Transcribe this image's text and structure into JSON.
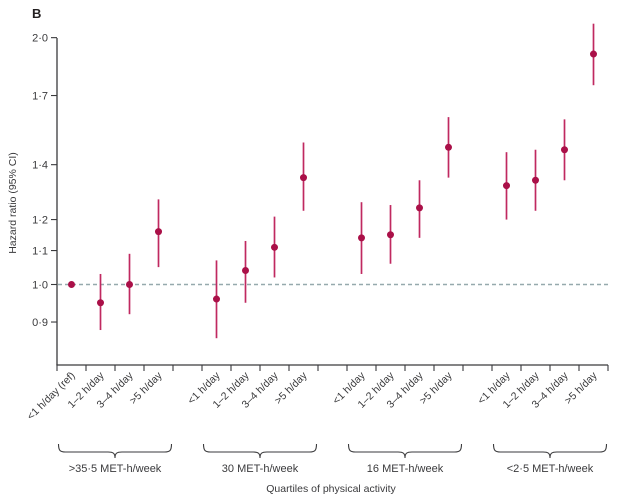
{
  "panel_label": "B",
  "colors": {
    "point": "#aa1048",
    "error_bar": "#c02960",
    "reference_line": "#96a9ad",
    "axis": "#3a3a3c",
    "text": "#3a3a3c"
  },
  "chart_data": {
    "type": "scatter",
    "subtype": "forest-plot-point-ranges",
    "title": "",
    "ylabel": "Hazard ratio (95% CI)",
    "xlabel": "Quartiles of physical activity",
    "y_scale": "log",
    "ylim": [
      0.8,
      2.08
    ],
    "grid": false,
    "reference_line_value": 1.0,
    "y_ticks": [
      {
        "label": "2·0",
        "value": 2.0
      },
      {
        "label": "1·7",
        "value": 1.7
      },
      {
        "label": "1·4",
        "value": 1.4
      },
      {
        "label": "1·2",
        "value": 1.2
      },
      {
        "label": "1·1",
        "value": 1.1
      },
      {
        "label": "1·0",
        "value": 1.0
      },
      {
        "label": "0·9",
        "value": 0.9
      }
    ],
    "groups": [
      {
        "label": ">35·5 MET-h/week",
        "points": [
          {
            "category": "<1 h/day (ref)",
            "hr": 1.0,
            "lo": null,
            "hi": null
          },
          {
            "category": "1–2 h/day",
            "hr": 0.95,
            "lo": 0.88,
            "hi": 1.03
          },
          {
            "category": "3–4 h/day",
            "hr": 1.0,
            "lo": 0.92,
            "hi": 1.09
          },
          {
            "category": ">5 h/day",
            "hr": 1.16,
            "lo": 1.05,
            "hi": 1.27
          }
        ]
      },
      {
        "label": "30 MET-h/week",
        "points": [
          {
            "category": "<1 h/day",
            "hr": 0.96,
            "lo": 0.86,
            "hi": 1.07
          },
          {
            "category": "1–2 h/day",
            "hr": 1.04,
            "lo": 0.95,
            "hi": 1.13
          },
          {
            "category": "3–4 h/day",
            "hr": 1.11,
            "lo": 1.02,
            "hi": 1.21
          },
          {
            "category": ">5 h/day",
            "hr": 1.35,
            "lo": 1.23,
            "hi": 1.49
          }
        ]
      },
      {
        "label": "16 MET-h/week",
        "points": [
          {
            "category": "<1 h/day",
            "hr": 1.14,
            "lo": 1.03,
            "hi": 1.26
          },
          {
            "category": "1–2 h/day",
            "hr": 1.15,
            "lo": 1.06,
            "hi": 1.25
          },
          {
            "category": "3–4 h/day",
            "hr": 1.24,
            "lo": 1.14,
            "hi": 1.34
          },
          {
            "category": ">5 h/day",
            "hr": 1.47,
            "lo": 1.35,
            "hi": 1.6
          }
        ]
      },
      {
        "label": "<2·5 MET-h/week",
        "points": [
          {
            "category": "<1 h/day",
            "hr": 1.32,
            "lo": 1.2,
            "hi": 1.45
          },
          {
            "category": "1–2 h/day",
            "hr": 1.34,
            "lo": 1.23,
            "hi": 1.46
          },
          {
            "category": "3–4 h/day",
            "hr": 1.46,
            "lo": 1.34,
            "hi": 1.59
          },
          {
            "category": ">5 h/day",
            "hr": 1.91,
            "lo": 1.75,
            "hi": 2.08
          }
        ]
      }
    ]
  }
}
